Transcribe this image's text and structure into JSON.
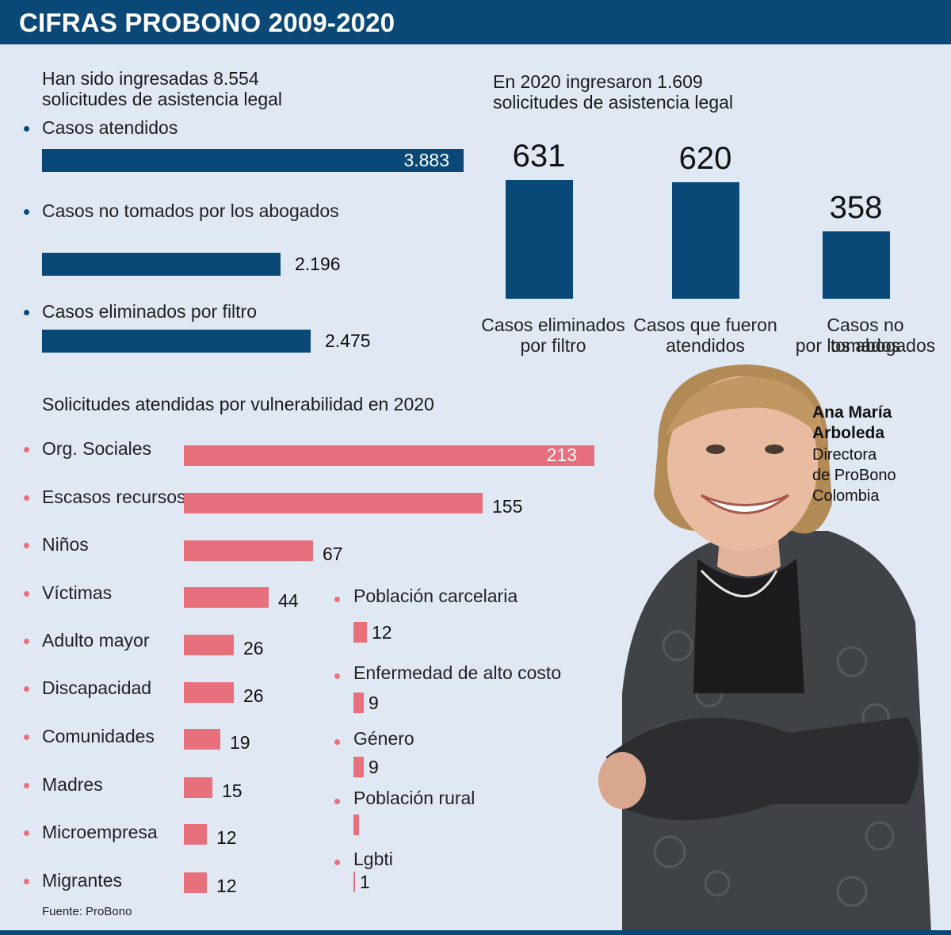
{
  "header": {
    "title": "CIFRAS PROBONO 2009-2020"
  },
  "total_section": {
    "heading_line1": "Han sido ingresadas 8.554",
    "heading_line2": "solicitudes de asistencia legal"
  },
  "year2020_section": {
    "heading_line1": "En 2020 ingresaron 1.609",
    "heading_line2": "solicitudes de asistencia legal"
  },
  "vulnerability_section": {
    "heading": "Solicitudes atendidas por vulnerabilidad en 2020"
  },
  "person": {
    "name_line1": "Ana María",
    "name_line2": "Arboleda",
    "role_line1": "Directora",
    "role_line2": "de ProBono",
    "role_line3": "Colombia"
  },
  "source": "Fuente: ProBono",
  "colors": {
    "navy": "#0a4877",
    "pink": "#e8707c",
    "background": "#dfe8f3"
  },
  "chart_data": [
    {
      "type": "bar",
      "orientation": "horizontal",
      "categories": [
        "Casos atendidos",
        "Casos no tomados por los abogados",
        "Casos eliminados por filtro"
      ],
      "values": [
        3883,
        2196,
        2475
      ],
      "value_labels": [
        "3.883",
        "2.196",
        "2.475"
      ],
      "color": "#0a4877"
    },
    {
      "type": "bar",
      "orientation": "vertical",
      "categories": [
        "Casos eliminados por filtro",
        "Casos que fueron atendidos",
        "Casos no tomados por los abogados"
      ],
      "category_lines": [
        [
          "Casos eliminados",
          "por filtro"
        ],
        [
          "Casos que fueron",
          "atendidos"
        ],
        [
          "Casos no tomados",
          "por los abogados"
        ]
      ],
      "values": [
        631,
        620,
        358
      ],
      "value_labels": [
        "631",
        "620",
        "358"
      ],
      "color": "#0a4877"
    },
    {
      "type": "bar",
      "orientation": "horizontal",
      "categories": [
        "Org. Sociales",
        "Escasos recursos",
        "Niños",
        "Víctimas",
        "Adulto mayor",
        "Discapacidad",
        "Comunidades",
        "Madres",
        "Microempresa",
        "Migrantes"
      ],
      "values": [
        213,
        155,
        67,
        44,
        26,
        26,
        19,
        15,
        12,
        12
      ],
      "value_labels": [
        "213",
        "155",
        "67",
        "44",
        "26",
        "26",
        "19",
        "15",
        "12",
        "12"
      ],
      "color": "#e8707c"
    },
    {
      "type": "bar",
      "orientation": "horizontal",
      "categories": [
        "Población carcelaria",
        "Enfermedad de alto costo",
        "Género",
        "Población rural",
        "Lgbti"
      ],
      "values": [
        12,
        9,
        9,
        5,
        1
      ],
      "value_labels": [
        "12",
        "9",
        "9",
        "",
        "1"
      ],
      "color": "#e8707c"
    }
  ]
}
